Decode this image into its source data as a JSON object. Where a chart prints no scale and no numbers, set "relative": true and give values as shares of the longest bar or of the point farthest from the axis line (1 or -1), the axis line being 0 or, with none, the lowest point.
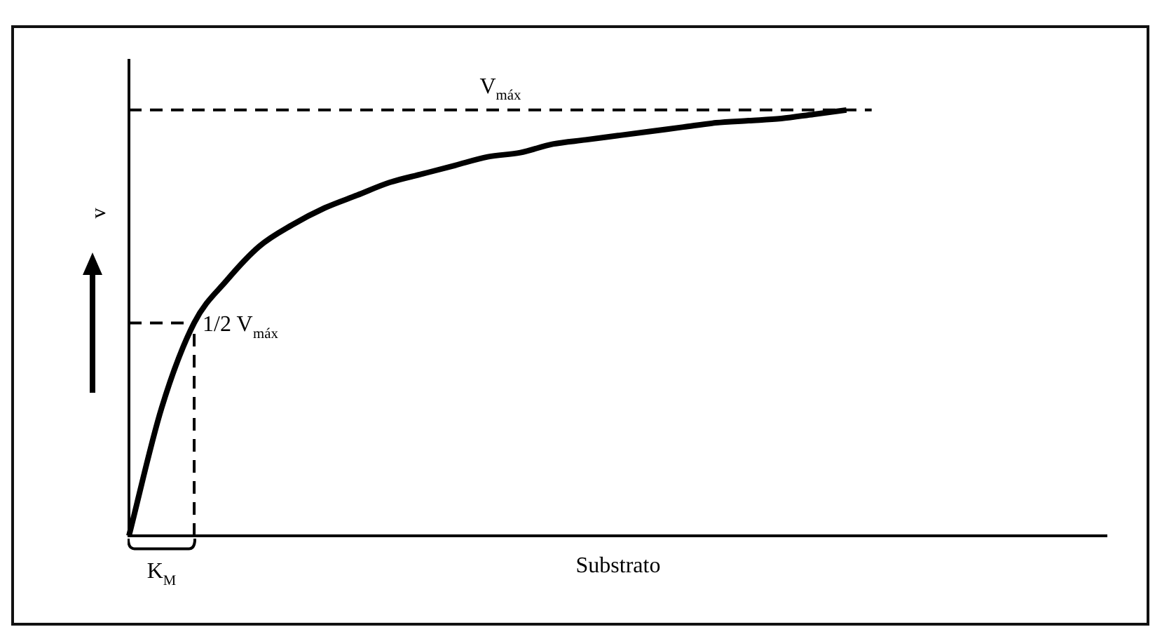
{
  "chart_data": {
    "type": "line",
    "relative": true,
    "xlabel": "Substrato",
    "ylabel": "v",
    "categories": [
      null,
      null,
      null,
      null,
      null,
      null,
      null,
      null,
      null,
      null,
      null,
      null,
      null,
      null,
      null,
      null,
      null,
      null,
      null,
      null,
      null,
      null,
      null,
      null,
      null,
      null,
      null,
      null,
      null,
      null,
      null
    ],
    "series": [
      {
        "color": "#000000",
        "values": [
          0,
          0.3,
          0.5,
          0.6,
          0.68,
          0.73,
          0.77,
          0.8,
          0.83,
          0.85,
          0.87,
          0.89,
          0.9,
          0.92,
          0.93,
          0.94,
          0.95,
          0.96,
          0.97,
          0.975,
          0.98,
          0.99,
          1,
          null,
          null,
          null,
          null,
          null,
          null,
          null,
          null
        ]
      }
    ],
    "ylim": [
      0,
      1.12
    ],
    "marker": "none",
    "line_style": "solid",
    "annotations": [
      "K$_{M}$"
    ],
    "ref_lines": [
      {
        "axis": "y",
        "value": 1,
        "label": "V$_{máx}$",
        "line_style": "dashed"
      },
      {
        "axis": "y",
        "value": 0.5,
        "label": "1/2 V$_{máx}$",
        "line_style": "dashed"
      }
    ]
  }
}
